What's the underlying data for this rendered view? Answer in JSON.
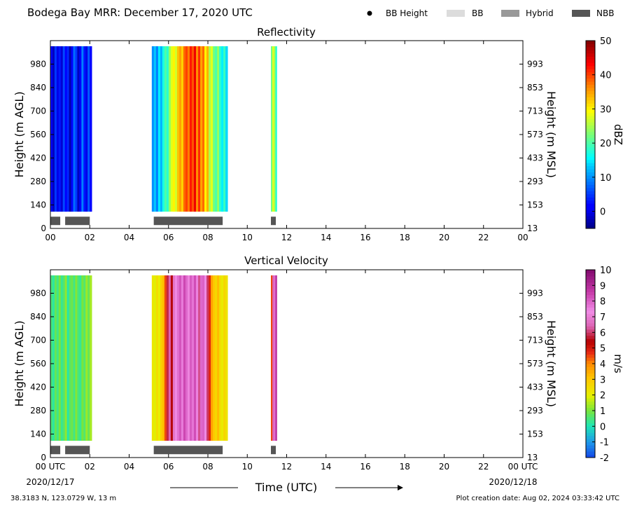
{
  "header": {
    "title": "Bodega Bay MRR:  December 17, 2020 UTC",
    "legend": [
      {
        "label": "BB Height",
        "marker": "dot",
        "color": "#000000"
      },
      {
        "label": "BB",
        "marker": "box",
        "color": "#dcdcdc"
      },
      {
        "label": "Hybrid",
        "marker": "box",
        "color": "#999999"
      },
      {
        "label": "NBB",
        "marker": "box",
        "color": "#555555"
      }
    ]
  },
  "footer": {
    "location": "38.3183 N, 123.0729 W, 13 m",
    "created": "Plot creation date: Aug 02, 2024 03:33:42 UTC",
    "xlabel": "Time (UTC)",
    "start_date": "2020/12/17",
    "end_date": "2020/12/18"
  },
  "chart_data": [
    {
      "type": "heatmap",
      "title": "Reflectivity",
      "ylabel": "Height (m AGL)",
      "ylabel_right": "Height (m MSL)",
      "xlim": [
        0,
        24
      ],
      "ylim": [
        0,
        1120
      ],
      "x_ticks": [
        "00",
        "02",
        "04",
        "06",
        "08",
        "10",
        "12",
        "14",
        "16",
        "18",
        "20",
        "22",
        "00"
      ],
      "y_ticks": [
        0,
        140,
        280,
        420,
        560,
        700,
        840,
        980
      ],
      "y_ticks_right": [
        13,
        153,
        293,
        433,
        573,
        713,
        853,
        993
      ],
      "colorbar": {
        "label": "dBZ",
        "range": [
          -5,
          50
        ],
        "ticks": [
          0,
          10,
          20,
          30,
          40,
          50
        ],
        "colormap": "jet"
      },
      "segments": [
        {
          "start": 0.0,
          "end": 2.1,
          "pattern": [
            2,
            -2,
            5,
            0,
            3,
            -1,
            6,
            1,
            4,
            -3,
            2,
            8,
            5,
            -2,
            1,
            9,
            3,
            0,
            7,
            2
          ]
        },
        {
          "start": 5.15,
          "end": 9.0,
          "pattern": [
            10,
            13,
            9,
            15,
            12,
            17,
            20,
            18,
            24,
            28,
            30,
            27,
            33,
            35,
            32,
            38,
            40,
            37,
            42,
            39,
            44,
            36,
            41,
            35,
            38,
            30,
            34,
            25,
            28,
            22,
            20,
            24,
            18,
            15,
            19,
            14
          ]
        },
        {
          "start": 11.2,
          "end": 11.5,
          "pattern": [
            22,
            28,
            25,
            18
          ]
        }
      ],
      "bright_band": [
        {
          "start": 0.0,
          "end": 0.5,
          "class": "NBB"
        },
        {
          "start": 0.75,
          "end": 2.0,
          "class": "NBB"
        },
        {
          "start": 5.25,
          "end": 8.75,
          "class": "NBB"
        },
        {
          "start": 11.2,
          "end": 11.45,
          "class": "NBB"
        }
      ]
    },
    {
      "type": "heatmap",
      "title": "Vertical Velocity",
      "ylabel": "Height (m AGL)",
      "ylabel_right": "Height (m MSL)",
      "xlim": [
        0,
        24
      ],
      "ylim": [
        0,
        1120
      ],
      "x_ticks": [
        "00 UTC",
        "02",
        "04",
        "06",
        "08",
        "10",
        "12",
        "14",
        "16",
        "18",
        "20",
        "22",
        "00 UTC"
      ],
      "y_ticks": [
        0,
        140,
        280,
        420,
        560,
        700,
        840,
        980
      ],
      "y_ticks_right": [
        13,
        153,
        293,
        433,
        573,
        713,
        853,
        993
      ],
      "colorbar": {
        "label": "m/s",
        "range": [
          -2,
          10
        ],
        "ticks": [
          -2,
          -1,
          0,
          1,
          2,
          3,
          4,
          5,
          6,
          7,
          8,
          9,
          10
        ],
        "colormap": "velocity"
      },
      "segments": [
        {
          "start": 0.0,
          "end": 2.1,
          "pattern": [
            0.5,
            0.2,
            0.8,
            0.4,
            1.0,
            0.3,
            0.6,
            1.2,
            0.1,
            0.7,
            0.9,
            0.4,
            1.1,
            0.5,
            0.3,
            1.0,
            0.6,
            1.3,
            0.8,
            1.4
          ]
        },
        {
          "start": 5.15,
          "end": 9.0,
          "pattern": [
            2.2,
            1.9,
            2.5,
            2.0,
            2.8,
            3.2,
            4.5,
            5.8,
            6.4,
            5.5,
            6.8,
            7.4,
            7.8,
            8.2,
            7.6,
            8.4,
            7.9,
            7.2,
            8.1,
            7.7,
            8.3,
            7.5,
            6.2,
            7.9,
            8.0,
            7.4,
            6.0,
            4.8,
            3.6,
            3.0,
            2.6,
            3.2,
            2.4,
            2.1,
            2.7,
            2.3
          ]
        },
        {
          "start": 11.2,
          "end": 11.5,
          "pattern": [
            4.5,
            6.4,
            7.8,
            8.8
          ]
        }
      ],
      "bright_band": [
        {
          "start": 0.0,
          "end": 0.5,
          "class": "NBB"
        },
        {
          "start": 0.75,
          "end": 2.0,
          "class": "NBB"
        },
        {
          "start": 5.25,
          "end": 8.75,
          "class": "NBB"
        },
        {
          "start": 11.2,
          "end": 11.45,
          "class": "NBB"
        }
      ]
    }
  ]
}
